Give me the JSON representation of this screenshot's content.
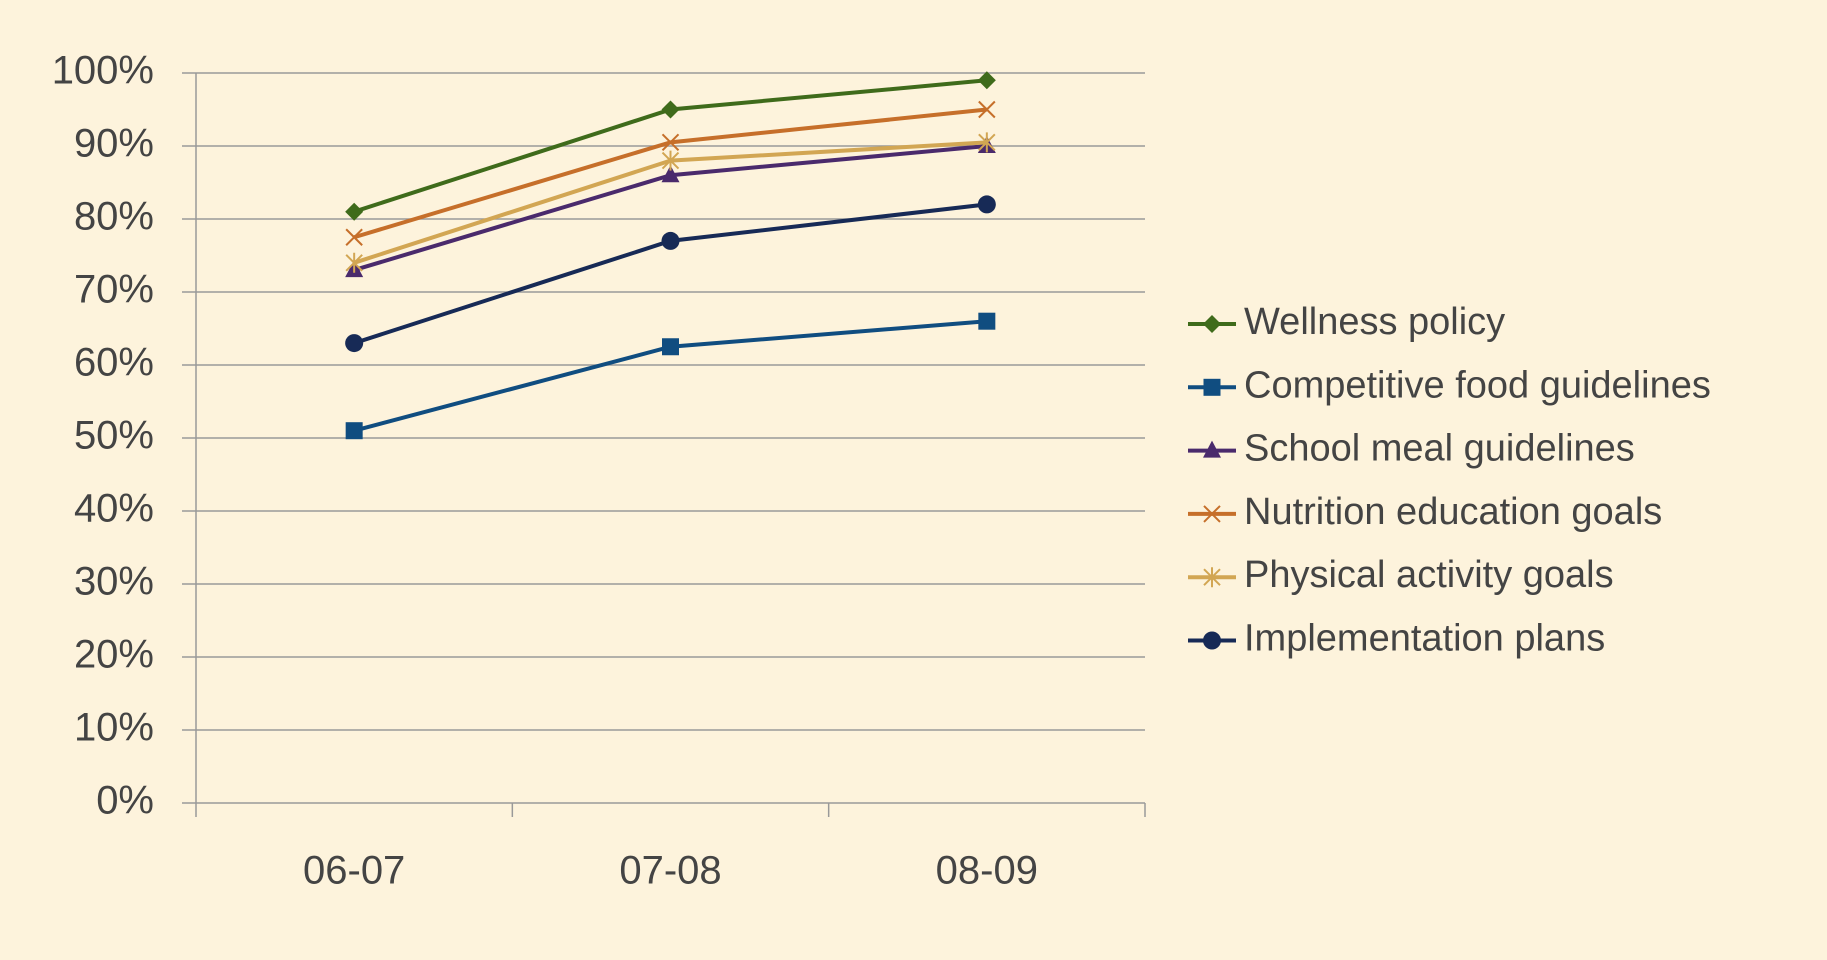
{
  "chart_data": {
    "type": "line",
    "categories": [
      "06-07",
      "07-08",
      "08-09"
    ],
    "series": [
      {
        "name": "Wellness policy",
        "color": "#3f6b1b",
        "marker": "diamond",
        "values": [
          81,
          95,
          99
        ]
      },
      {
        "name": "Competitive food guidelines",
        "color": "#104d80",
        "marker": "square",
        "values": [
          51,
          62.5,
          66
        ]
      },
      {
        "name": "School meal guidelines",
        "color": "#4a2a6c",
        "marker": "triangle",
        "values": [
          73,
          86,
          90
        ]
      },
      {
        "name": "Nutrition education goals",
        "color": "#c66f2a",
        "marker": "x",
        "values": [
          77.5,
          90.5,
          95
        ]
      },
      {
        "name": "Physical activity goals",
        "color": "#d2a653",
        "marker": "star",
        "values": [
          74,
          88,
          90.5
        ]
      },
      {
        "name": "Implementation plans",
        "color": "#172a56",
        "marker": "circle",
        "values": [
          63,
          77,
          82
        ]
      }
    ],
    "ylim": [
      0,
      100
    ],
    "yticks": [
      {
        "value": 0,
        "label": "0%"
      },
      {
        "value": 10,
        "label": "10%"
      },
      {
        "value": 20,
        "label": "20%"
      },
      {
        "value": 30,
        "label": "30%"
      },
      {
        "value": 40,
        "label": "40%"
      },
      {
        "value": 50,
        "label": "50%"
      },
      {
        "value": 60,
        "label": "60%"
      },
      {
        "value": 70,
        "label": "70%"
      },
      {
        "value": 80,
        "label": "80%"
      },
      {
        "value": 90,
        "label": "90%"
      },
      {
        "value": 100,
        "label": "100%"
      }
    ],
    "grid": true,
    "legend": "right"
  }
}
